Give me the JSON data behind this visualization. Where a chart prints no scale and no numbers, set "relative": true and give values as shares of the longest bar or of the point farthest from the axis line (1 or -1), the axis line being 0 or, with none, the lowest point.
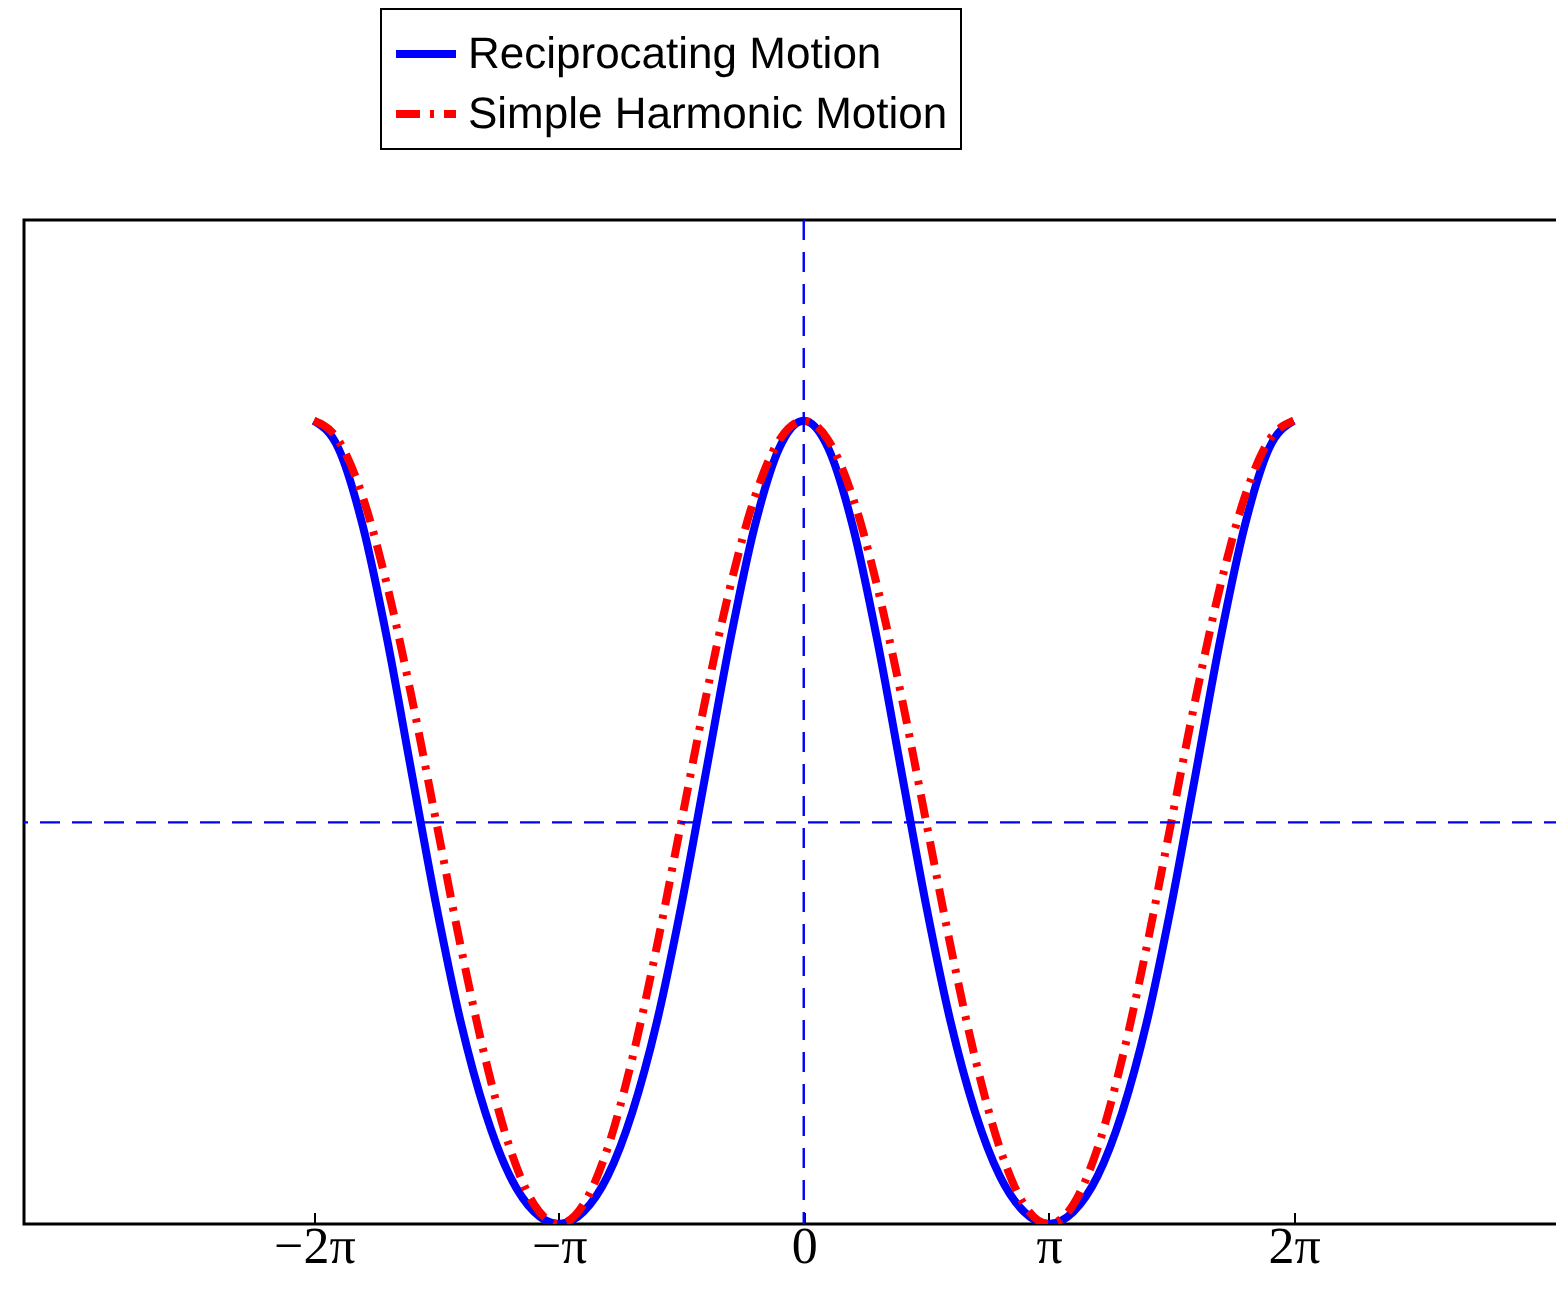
{
  "chart_data": {
    "type": "line",
    "relative": true,
    "x": [
      -6.283,
      -5.969,
      -5.655,
      -5.341,
      -5.027,
      -4.712,
      -4.398,
      -4.084,
      -3.77,
      -3.456,
      -3.142,
      -2.827,
      -2.513,
      -2.199,
      -1.885,
      -1.571,
      -1.257,
      -0.942,
      -0.628,
      -0.314,
      0,
      0.314,
      0.628,
      0.942,
      1.257,
      1.571,
      1.885,
      2.199,
      2.513,
      2.827,
      3.142,
      3.456,
      3.77,
      4.084,
      4.398,
      4.712,
      5.027,
      5.341,
      5.655,
      5.969,
      6.283
    ],
    "series": [
      {
        "name": "Reciprocating Motion",
        "color": "#0000ff",
        "line_style": "solid",
        "values": [
          1,
          0.966,
          0.869,
          0.727,
          0.561,
          0.396,
          0.251,
          0.139,
          0.06,
          0.015,
          0,
          0.015,
          0.06,
          0.139,
          0.251,
          0.396,
          0.561,
          0.727,
          0.869,
          0.966,
          1,
          0.966,
          0.869,
          0.727,
          0.561,
          0.396,
          0.251,
          0.139,
          0.06,
          0.015,
          0,
          0.015,
          0.06,
          0.139,
          0.251,
          0.396,
          0.561,
          0.727,
          0.869,
          0.966,
          1
        ]
      },
      {
        "name": "Simple Harmonic Motion",
        "color": "#ff0000",
        "line_style": "dashed",
        "values": [
          1,
          0.976,
          0.905,
          0.794,
          0.655,
          0.5,
          0.345,
          0.206,
          0.095,
          0.024,
          0,
          0.024,
          0.095,
          0.206,
          0.345,
          0.5,
          0.655,
          0.794,
          0.905,
          0.976,
          1,
          0.976,
          0.905,
          0.794,
          0.655,
          0.5,
          0.345,
          0.206,
          0.095,
          0.024,
          0,
          0.024,
          0.095,
          0.206,
          0.345,
          0.5,
          0.655,
          0.794,
          0.905,
          0.976,
          1
        ]
      }
    ],
    "xlim": [
      -10,
      9.75
    ],
    "xticks": [
      {
        "value": -6.283,
        "label": "−2π"
      },
      {
        "value": -3.142,
        "label": "−π"
      },
      {
        "value": 0,
        "label": "0"
      },
      {
        "value": 3.142,
        "label": "π"
      },
      {
        "value": 6.283,
        "label": "2π"
      }
    ],
    "ref_lines": [
      {
        "axis": "y",
        "value": 0.5,
        "color": "#0000ff",
        "line_style": "dashed"
      },
      {
        "axis": "x",
        "value": 0,
        "color": "#0000ff",
        "line_style": "dashed"
      }
    ],
    "grid": false,
    "legend": "top",
    "tick_labels": "x"
  }
}
